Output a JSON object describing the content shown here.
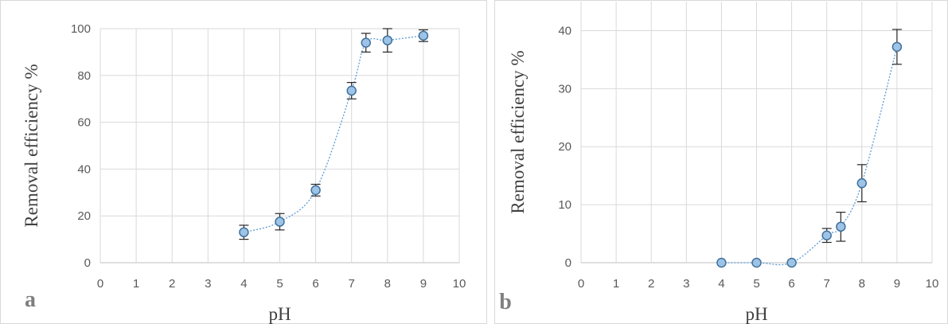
{
  "chart_data": [
    {
      "type": "scatter",
      "panel_label": "a",
      "xlabel": "pH",
      "ylabel": "Removal efficiency %",
      "xlim": [
        0,
        10
      ],
      "ylim": [
        0,
        100
      ],
      "x_ticks": [
        0,
        1,
        2,
        3,
        4,
        5,
        6,
        7,
        8,
        9,
        10
      ],
      "y_ticks": [
        0,
        20,
        40,
        60,
        80,
        100
      ],
      "grid": true,
      "smooth_line": true,
      "series": [
        {
          "x": [
            4,
            5,
            6,
            7,
            7.4,
            8,
            9
          ],
          "y": [
            13,
            17.5,
            31,
            73.5,
            94,
            95,
            97
          ],
          "error": [
            3,
            3.5,
            2.5,
            3.5,
            4,
            5,
            2.5
          ],
          "color": "#5b9bd5"
        }
      ]
    },
    {
      "type": "scatter",
      "panel_label": "b",
      "xlabel": "pH",
      "ylabel": "Removal efficiency %",
      "xlim": [
        0,
        10
      ],
      "ylim": [
        0,
        45
      ],
      "x_ticks": [
        0,
        1,
        2,
        3,
        4,
        5,
        6,
        7,
        8,
        9,
        10
      ],
      "y_ticks": [
        0,
        10,
        20,
        30,
        40
      ],
      "grid": true,
      "smooth_line": true,
      "series": [
        {
          "x": [
            4,
            5,
            6,
            7,
            7.4,
            8,
            9
          ],
          "y": [
            0,
            0,
            0,
            4.7,
            6.2,
            13.7,
            37.2
          ],
          "error": [
            0,
            0,
            0,
            1.2,
            2.5,
            3.2,
            3
          ],
          "color": "#5b9bd5"
        }
      ]
    }
  ]
}
